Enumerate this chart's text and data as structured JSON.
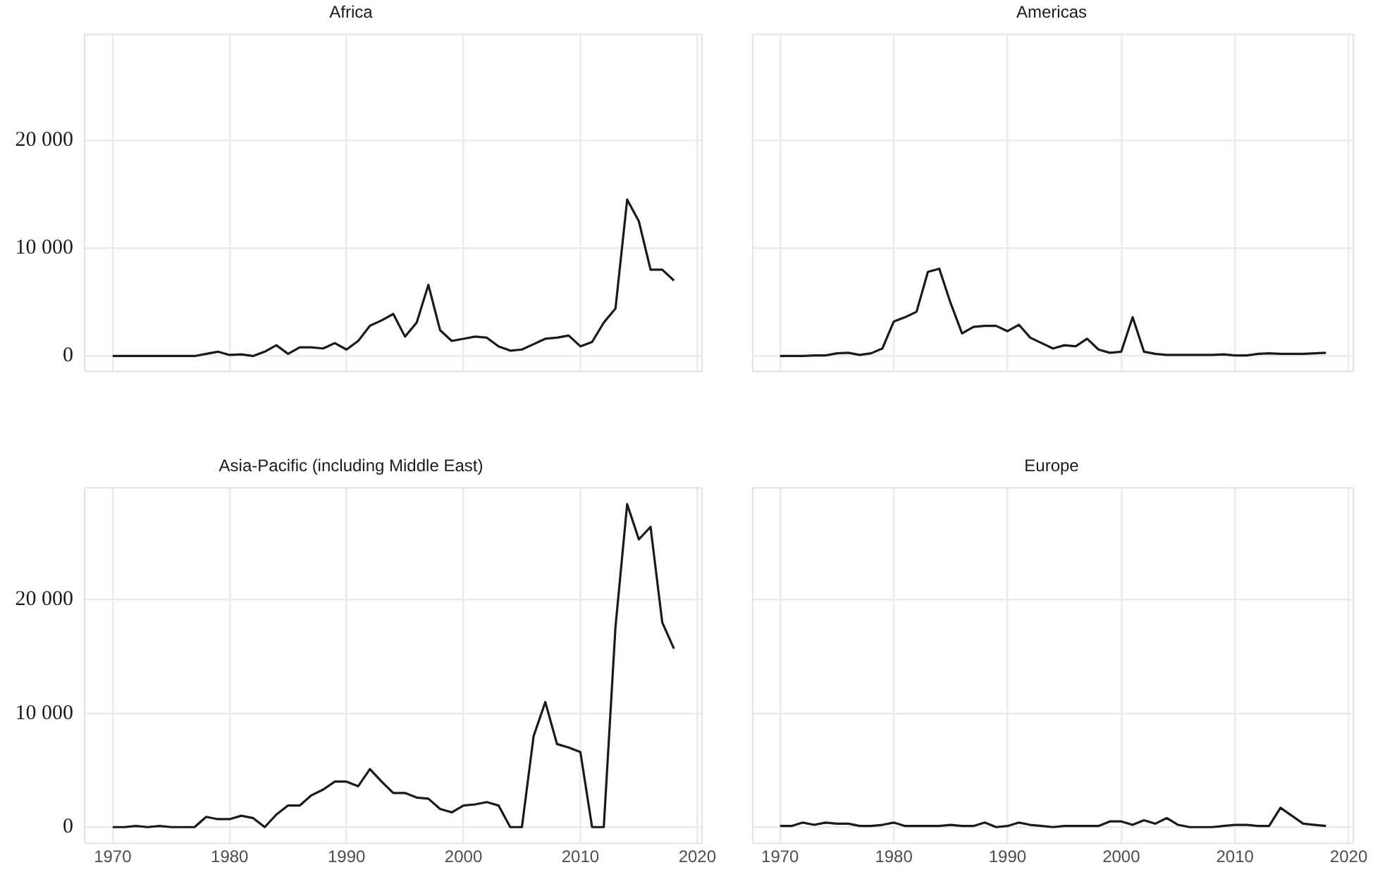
{
  "chart_data": [
    {
      "type": "line",
      "title": "Africa",
      "tick_labels": "y",
      "grid": true,
      "color": "#1a1a1a",
      "xlim": [
        1967.6,
        2020.4
      ],
      "ylim": [
        -1420,
        29820
      ],
      "xticks": [
        1970,
        1980,
        1990,
        2000,
        2010,
        2020
      ],
      "yticks": [
        {
          "value": 0,
          "label": "0"
        },
        {
          "value": 10000,
          "label": "10 000"
        },
        {
          "value": 20000,
          "label": "20 000"
        }
      ],
      "x": [
        1970,
        1971,
        1972,
        1973,
        1974,
        1975,
        1976,
        1977,
        1978,
        1979,
        1980,
        1981,
        1982,
        1983,
        1984,
        1985,
        1986,
        1987,
        1988,
        1989,
        1990,
        1991,
        1992,
        1993,
        1994,
        1995,
        1996,
        1997,
        1998,
        1999,
        2000,
        2001,
        2002,
        2003,
        2004,
        2005,
        2006,
        2007,
        2008,
        2009,
        2010,
        2011,
        2012,
        2013,
        2014,
        2015,
        2016,
        2017,
        2018
      ],
      "values": [
        0,
        0,
        0,
        0,
        0,
        0,
        0,
        0,
        200,
        400,
        100,
        150,
        0,
        400,
        1000,
        200,
        800,
        800,
        700,
        1200,
        600,
        1400,
        2800,
        3300,
        3900,
        1800,
        3100,
        6600,
        2400,
        1400,
        1600,
        1800,
        1700,
        900,
        500,
        600,
        1100,
        1600,
        1700,
        1900,
        900,
        1300,
        3100,
        4400,
        14500,
        12500,
        8000,
        8000,
        7000
      ]
    },
    {
      "type": "line",
      "title": "Americas",
      "tick_labels": false,
      "grid": true,
      "color": "#1a1a1a",
      "xlim": [
        1967.6,
        2020.4
      ],
      "ylim": [
        -1420,
        29820
      ],
      "xticks": [
        1970,
        1980,
        1990,
        2000,
        2010,
        2020
      ],
      "yticks": [
        0,
        10000,
        20000
      ],
      "x": [
        1970,
        1971,
        1972,
        1973,
        1974,
        1975,
        1976,
        1977,
        1978,
        1979,
        1980,
        1981,
        1982,
        1983,
        1984,
        1985,
        1986,
        1987,
        1988,
        1989,
        1990,
        1991,
        1992,
        1993,
        1994,
        1995,
        1996,
        1997,
        1998,
        1999,
        2000,
        2001,
        2002,
        2003,
        2004,
        2005,
        2006,
        2007,
        2008,
        2009,
        2010,
        2011,
        2012,
        2013,
        2014,
        2015,
        2016,
        2017,
        2018
      ],
      "values": [
        0,
        0,
        0,
        50,
        50,
        250,
        300,
        100,
        250,
        700,
        3200,
        3600,
        4100,
        7800,
        8100,
        4900,
        2100,
        2700,
        2800,
        2800,
        2300,
        2900,
        1700,
        1200,
        700,
        1000,
        900,
        1600,
        600,
        300,
        400,
        3600,
        400,
        200,
        100,
        100,
        100,
        100,
        100,
        150,
        50,
        50,
        200,
        250,
        200,
        200,
        200,
        250,
        300
      ]
    },
    {
      "type": "line",
      "title": "Asia-Pacific (including Middle East)",
      "grid": true,
      "color": "#1a1a1a",
      "xlim": [
        1967.6,
        2020.4
      ],
      "ylim": [
        -1420,
        29820
      ],
      "xticks": [
        1970,
        1980,
        1990,
        2000,
        2010,
        2020
      ],
      "yticks": [
        {
          "value": 0,
          "label": "0"
        },
        {
          "value": 10000,
          "label": "10 000"
        },
        {
          "value": 20000,
          "label": "20 000"
        }
      ],
      "x": [
        1970,
        1971,
        1972,
        1973,
        1974,
        1975,
        1976,
        1977,
        1978,
        1979,
        1980,
        1981,
        1982,
        1983,
        1984,
        1985,
        1986,
        1987,
        1988,
        1989,
        1990,
        1991,
        1992,
        1993,
        1994,
        1995,
        1996,
        1997,
        1998,
        1999,
        2000,
        2001,
        2002,
        2003,
        2004,
        2005,
        2006,
        2007,
        2008,
        2009,
        2010,
        2011,
        2012,
        2013,
        2014,
        2015,
        2016,
        2017,
        2018
      ],
      "values": [
        0,
        0,
        100,
        0,
        100,
        0,
        0,
        0,
        900,
        700,
        700,
        1000,
        800,
        0,
        1100,
        1900,
        1900,
        2800,
        3300,
        4000,
        4000,
        3600,
        5100,
        4000,
        3000,
        3000,
        2600,
        2500,
        1600,
        1300,
        1900,
        2000,
        2200,
        1900,
        0,
        0,
        8000,
        11000,
        7300,
        7000,
        6600,
        0,
        0,
        17600,
        28400,
        25300,
        26400,
        18000,
        15700
      ]
    },
    {
      "type": "line",
      "title": "Europe",
      "tick_labels": "x",
      "grid": true,
      "color": "#1a1a1a",
      "xlim": [
        1967.6,
        2020.4
      ],
      "ylim": [
        -1420,
        29820
      ],
      "xticks": [
        1970,
        1980,
        1990,
        2000,
        2010,
        2020
      ],
      "yticks": [
        0,
        10000,
        20000
      ],
      "x": [
        1970,
        1971,
        1972,
        1973,
        1974,
        1975,
        1976,
        1977,
        1978,
        1979,
        1980,
        1981,
        1982,
        1983,
        1984,
        1985,
        1986,
        1987,
        1988,
        1989,
        1990,
        1991,
        1992,
        1993,
        1994,
        1995,
        1996,
        1997,
        1998,
        1999,
        2000,
        2001,
        2002,
        2003,
        2004,
        2005,
        2006,
        2007,
        2008,
        2009,
        2010,
        2011,
        2012,
        2013,
        2014,
        2015,
        2016,
        2017,
        2018
      ],
      "values": [
        100,
        100,
        400,
        200,
        400,
        300,
        300,
        100,
        100,
        200,
        400,
        100,
        100,
        100,
        100,
        200,
        100,
        100,
        400,
        0,
        100,
        400,
        200,
        100,
        0,
        100,
        100,
        100,
        100,
        500,
        500,
        200,
        600,
        300,
        800,
        200,
        0,
        0,
        0,
        100,
        200,
        200,
        100,
        100,
        1700,
        1000,
        300,
        200,
        100
      ]
    }
  ]
}
